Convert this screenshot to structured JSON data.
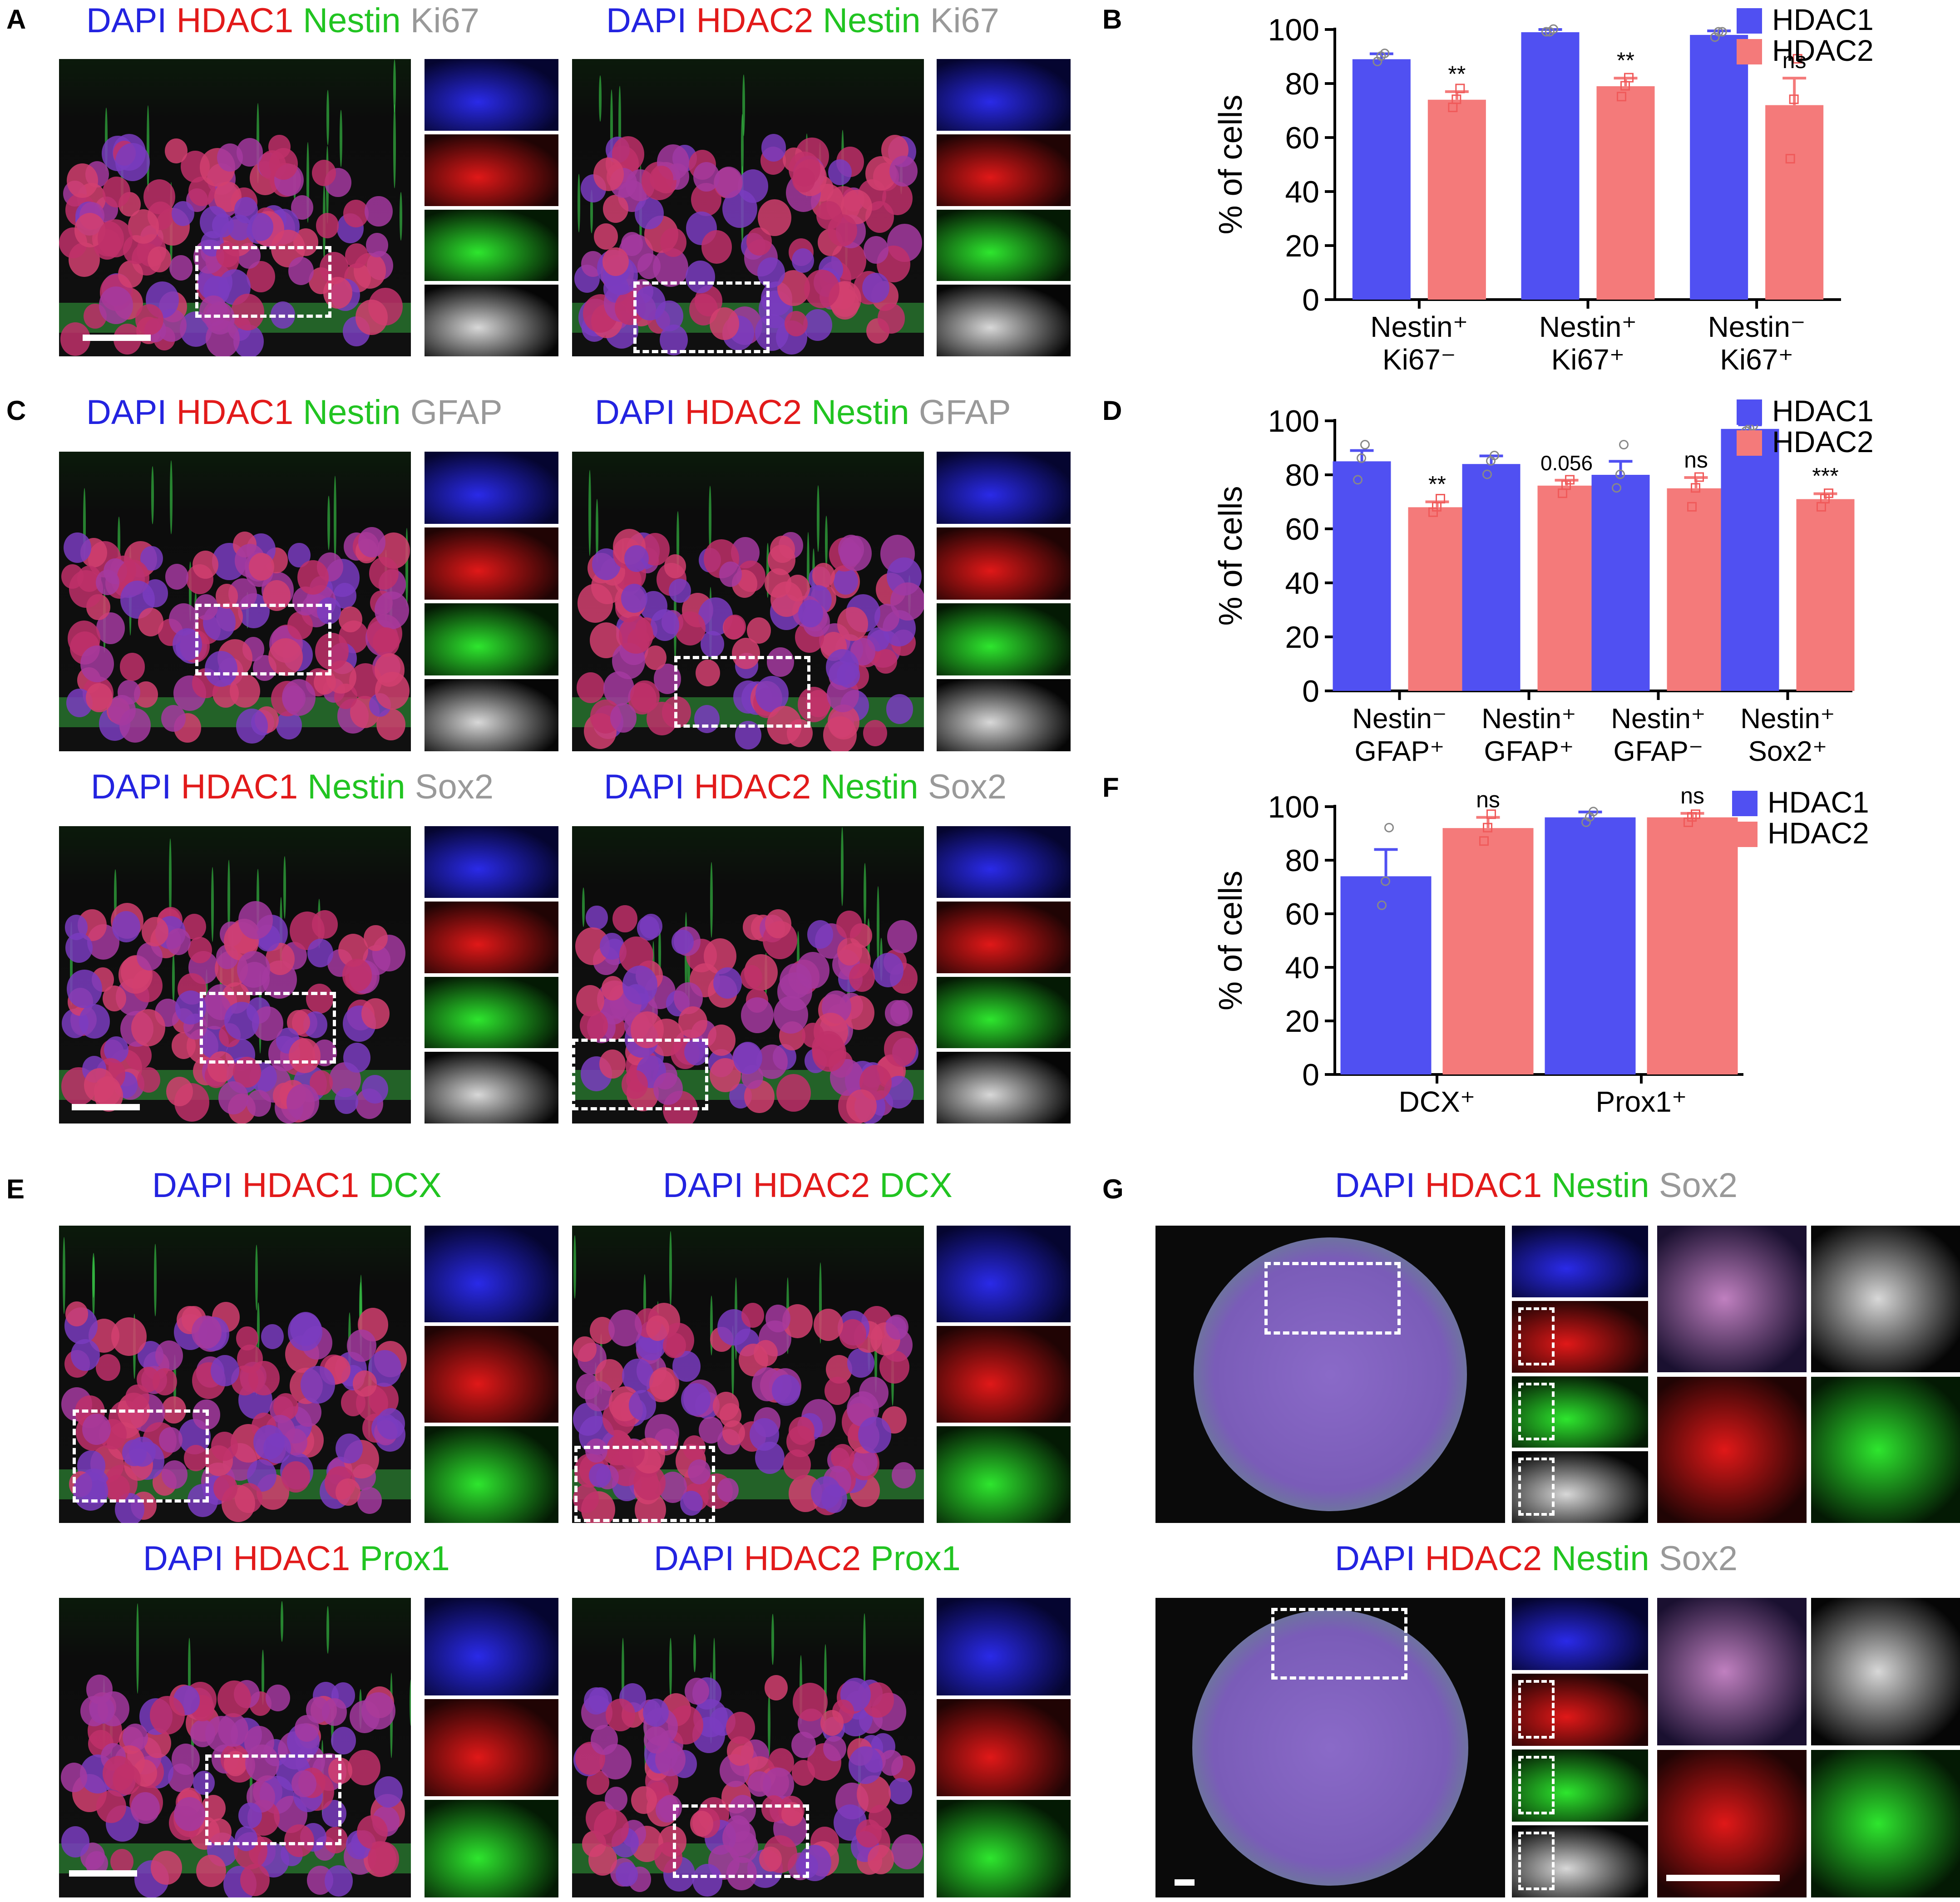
{
  "panels": {
    "A": {
      "letter": "A",
      "left_title": [
        "DAPI",
        "HDAC1",
        "Nestin",
        "Ki67"
      ],
      "right_title": [
        "DAPI",
        "HDAC2",
        "Nestin",
        "Ki67"
      ]
    },
    "C": {
      "letter": "C",
      "top_left_title": [
        "DAPI",
        "HDAC1",
        "Nestin",
        "GFAP"
      ],
      "top_right_title": [
        "DAPI",
        "HDAC2",
        "Nestin",
        "GFAP"
      ],
      "bottom_left_title": [
        "DAPI",
        "HDAC1",
        "Nestin",
        "Sox2"
      ],
      "bottom_right_title": [
        "DAPI",
        "HDAC2",
        "Nestin",
        "Sox2"
      ]
    },
    "E": {
      "letter": "E",
      "top_left_title": [
        "DAPI",
        "HDAC1",
        "DCX"
      ],
      "top_right_title": [
        "DAPI",
        "HDAC2",
        "DCX"
      ],
      "bottom_left_title": [
        "DAPI",
        "HDAC1",
        "Prox1"
      ],
      "bottom_right_title": [
        "DAPI",
        "HDAC2",
        "Prox1"
      ]
    },
    "G": {
      "letter": "G",
      "top_title": [
        "DAPI",
        "HDAC1",
        "Nestin",
        "Sox2"
      ],
      "bottom_title": [
        "DAPI",
        "HDAC2",
        "Nestin",
        "Sox2"
      ]
    }
  },
  "colors": {
    "DAPI": "#2323e0",
    "HDAC": "#e21a1a",
    "marker_green": "#21c421",
    "marker_grey": "#999999",
    "hdac1_bar": "#5050f2",
    "hdac2_bar": "#f47a7a"
  },
  "chart_data": [
    {
      "panel": "B",
      "type": "bar",
      "ylabel": "% of cells",
      "ylim": [
        0,
        100
      ],
      "yticks": [
        0,
        20,
        40,
        60,
        80,
        100
      ],
      "legend": [
        "HDAC1",
        "HDAC2"
      ],
      "legend_position": "top-right",
      "categories": [
        [
          "Nestin⁺",
          "Ki67⁻"
        ],
        [
          "Nestin⁺",
          "Ki67⁺"
        ],
        [
          "Nestin⁻",
          "Ki67⁺"
        ]
      ],
      "series": [
        {
          "name": "HDAC1",
          "values": [
            89,
            99,
            98
          ],
          "errors": [
            2,
            1,
            1.5
          ],
          "points": [
            [
              88,
              90,
              91
            ],
            [
              99,
              99,
              100
            ],
            [
              97,
              99,
              99
            ]
          ]
        },
        {
          "name": "HDAC2",
          "values": [
            74,
            79,
            72
          ],
          "errors": [
            3,
            3,
            10
          ],
          "points": [
            [
              71,
              74,
              78
            ],
            [
              75,
              79,
              82
            ],
            [
              52,
              74,
              89
            ]
          ]
        }
      ],
      "annotations": [
        "**",
        "**",
        "ns"
      ]
    },
    {
      "panel": "D",
      "type": "bar",
      "ylabel": "% of cells",
      "ylim": [
        0,
        100
      ],
      "yticks": [
        0,
        20,
        40,
        60,
        80,
        100
      ],
      "legend": [
        "HDAC1",
        "HDAC2"
      ],
      "legend_position": "top-right",
      "categories": [
        [
          "Nestin⁻",
          "GFAP⁺"
        ],
        [
          "Nestin⁺",
          "GFAP⁺"
        ],
        [
          "Nestin⁺",
          "GFAP⁻"
        ],
        [
          "Nestin⁺",
          "Sox2⁺"
        ]
      ],
      "series": [
        {
          "name": "HDAC1",
          "values": [
            85,
            84,
            80,
            97
          ],
          "errors": [
            4,
            3,
            5,
            1.5
          ],
          "points": [
            [
              78,
              86,
              91
            ],
            [
              80,
              85,
              87
            ],
            [
              75,
              80,
              91
            ],
            [
              96,
              97,
              98
            ]
          ]
        },
        {
          "name": "HDAC2",
          "values": [
            68,
            76,
            75,
            71
          ],
          "errors": [
            2,
            2,
            4,
            2
          ],
          "points": [
            [
              66,
              68,
              71
            ],
            [
              73,
              76,
              78
            ],
            [
              68,
              75,
              79
            ],
            [
              68,
              71,
              73
            ]
          ]
        }
      ],
      "annotations": [
        "**",
        "0.056",
        "ns",
        "***"
      ]
    },
    {
      "panel": "F",
      "type": "bar",
      "ylabel": "% of cells",
      "ylim": [
        0,
        100
      ],
      "yticks": [
        0,
        20,
        40,
        60,
        80,
        100
      ],
      "legend": [
        "HDAC1",
        "HDAC2"
      ],
      "legend_position": "top-right",
      "categories": [
        [
          "DCX⁺"
        ],
        [
          "Prox1⁺"
        ]
      ],
      "series": [
        {
          "name": "HDAC1",
          "values": [
            74,
            96
          ],
          "errors": [
            10,
            2
          ],
          "points": [
            [
              63,
              72,
              92
            ],
            [
              94,
              96,
              98
            ]
          ]
        },
        {
          "name": "HDAC2",
          "values": [
            92,
            96
          ],
          "errors": [
            4,
            1.5
          ],
          "points": [
            [
              87,
              92,
              97
            ],
            [
              94,
              96,
              97
            ]
          ]
        }
      ],
      "annotations": [
        "ns",
        "ns"
      ]
    }
  ]
}
